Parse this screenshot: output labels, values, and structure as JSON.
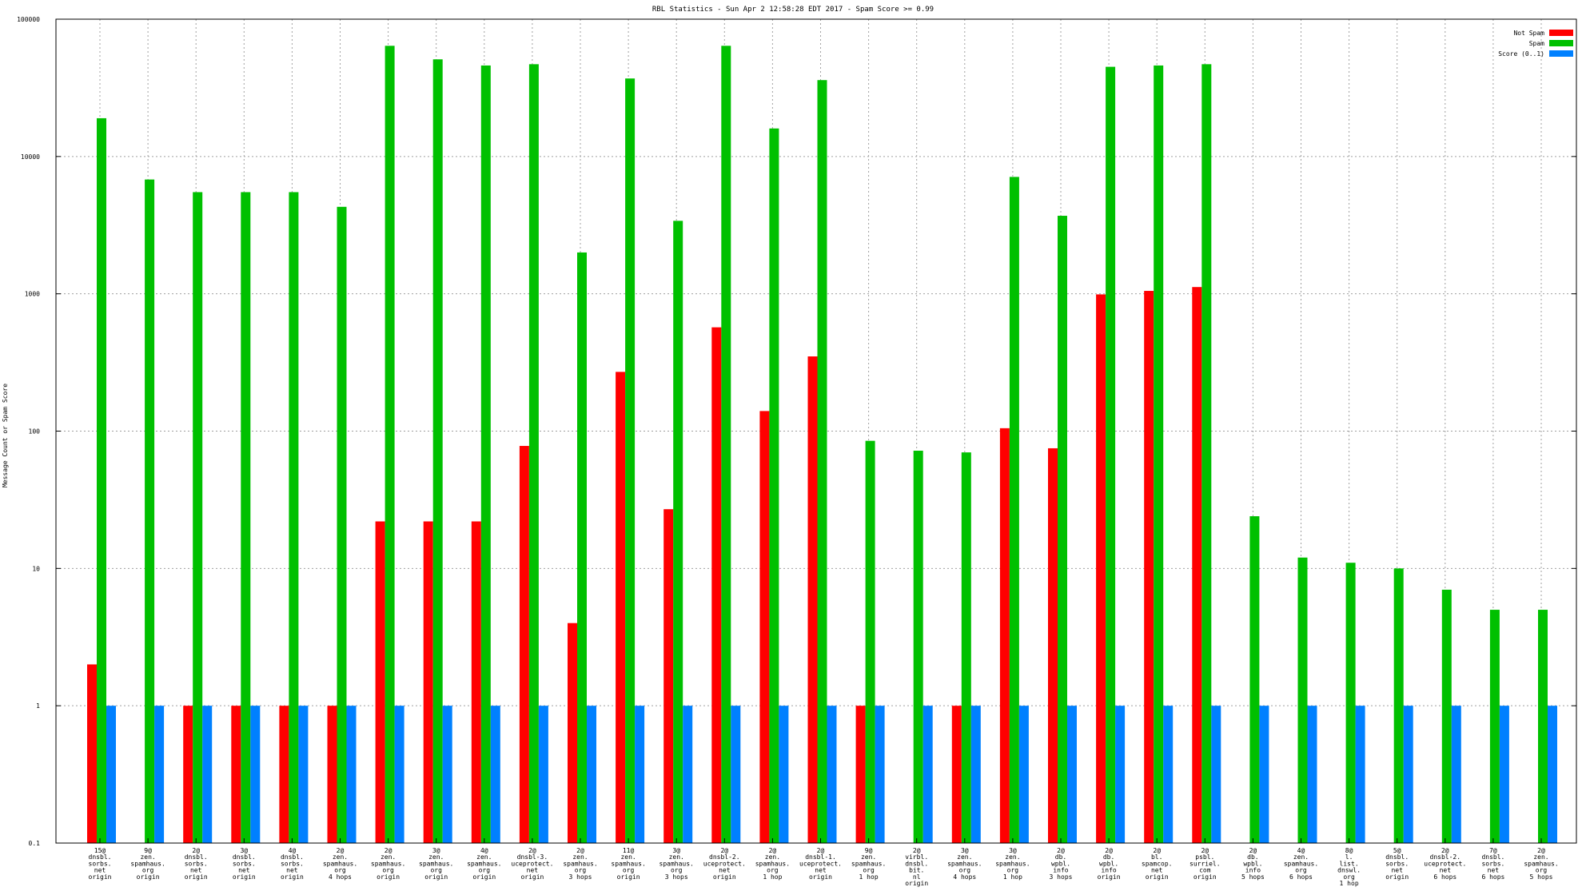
{
  "chart_data": {
    "type": "bar",
    "title": "RBL Statistics - Sun Apr  2 12:58:28 EDT 2017 - Spam Score >= 0.99",
    "ylabel": "Message Count or Spam Score",
    "xlabel": "",
    "yscale": "log",
    "ylim": [
      0.1,
      100000
    ],
    "yticks": [
      {
        "value": 0.1,
        "label": "0.1"
      },
      {
        "value": 1,
        "label": "1"
      },
      {
        "value": 10,
        "label": "10"
      },
      {
        "value": 100,
        "label": "100"
      },
      {
        "value": 1000,
        "label": "1000"
      },
      {
        "value": 10000,
        "label": "10000"
      },
      {
        "value": 100000,
        "label": "100000"
      }
    ],
    "grid": true,
    "legend_position": "top-right",
    "categories": [
      [
        "15@",
        "dnsbl.",
        "sorbs.",
        "net",
        "origin"
      ],
      [
        "9@",
        "zen.",
        "spamhaus.",
        "org",
        "origin"
      ],
      [
        "2@",
        "dnsbl.",
        "sorbs.",
        "net",
        "origin"
      ],
      [
        "3@",
        "dnsbl.",
        "sorbs.",
        "net",
        "origin"
      ],
      [
        "4@",
        "dnsbl.",
        "sorbs.",
        "net",
        "origin"
      ],
      [
        "2@",
        "zen.",
        "spamhaus.",
        "org",
        "4 hops"
      ],
      [
        "2@",
        "zen.",
        "spamhaus.",
        "org",
        "origin"
      ],
      [
        "3@",
        "zen.",
        "spamhaus.",
        "org",
        "origin"
      ],
      [
        "4@",
        "zen.",
        "spamhaus.",
        "org",
        "origin"
      ],
      [
        "2@",
        "dnsbl-3.",
        "uceprotect.",
        "net",
        "origin"
      ],
      [
        "2@",
        "zen.",
        "spamhaus.",
        "org",
        "3 hops"
      ],
      [
        "11@",
        "zen.",
        "spamhaus.",
        "org",
        "origin"
      ],
      [
        "3@",
        "zen.",
        "spamhaus.",
        "org",
        "3 hops"
      ],
      [
        "2@",
        "dnsbl-2.",
        "uceprotect.",
        "net",
        "origin"
      ],
      [
        "2@",
        "zen.",
        "spamhaus.",
        "org",
        "1 hop"
      ],
      [
        "2@",
        "dnsbl-1.",
        "uceprotect.",
        "net",
        "origin"
      ],
      [
        "9@",
        "zen.",
        "spamhaus.",
        "org",
        "1 hop"
      ],
      [
        "2@",
        "virbl.",
        "dnsbl.",
        "bit.",
        "nl",
        "origin"
      ],
      [
        "3@",
        "zen.",
        "spamhaus.",
        "org",
        "4 hops"
      ],
      [
        "3@",
        "zen.",
        "spamhaus.",
        "org",
        "1 hop"
      ],
      [
        "2@",
        "db.",
        "wpbl.",
        "info",
        "3 hops"
      ],
      [
        "2@",
        "db.",
        "wpbl.",
        "info",
        "origin"
      ],
      [
        "2@",
        "bl.",
        "spamcop.",
        "net",
        "origin"
      ],
      [
        "2@",
        "psbl.",
        "surriel.",
        "com",
        "origin"
      ],
      [
        "2@",
        "db.",
        "wpbl.",
        "info",
        "5 hops"
      ],
      [
        "4@",
        "zen.",
        "spamhaus.",
        "org",
        "6 hops"
      ],
      [
        "8@",
        "l.",
        "list.",
        "dnswl.",
        "org",
        "1 hop"
      ],
      [
        "5@",
        "dnsbl.",
        "sorbs.",
        "net",
        "origin"
      ],
      [
        "2@",
        "dnsbl-2.",
        "uceprotect.",
        "net",
        "6 hops"
      ],
      [
        "7@",
        "dnsbl.",
        "sorbs.",
        "net",
        "6 hops"
      ],
      [
        "2@",
        "zen.",
        "spamhaus.",
        "org",
        "5 hops"
      ]
    ],
    "series": [
      {
        "name": "Not Spam",
        "color": "#ff0000",
        "values": [
          2,
          null,
          1,
          1,
          1,
          1,
          22,
          22,
          22,
          78,
          4,
          270,
          27,
          570,
          140,
          350,
          1,
          null,
          1,
          105,
          75,
          990,
          1050,
          1120,
          null,
          null,
          null,
          null,
          null,
          null,
          null
        ]
      },
      {
        "name": "Spam",
        "color": "#00c000",
        "values": [
          19000,
          6800,
          5500,
          5500,
          5500,
          4300,
          64000,
          51000,
          46000,
          47000,
          2000,
          37000,
          3400,
          64000,
          16000,
          36000,
          85,
          72,
          70,
          7100,
          3700,
          45000,
          46000,
          47000,
          24,
          12,
          11,
          10,
          7,
          5,
          5
        ]
      },
      {
        "name": "Score (0..1)",
        "color": "#0080ff",
        "values": [
          1,
          1,
          1,
          1,
          1,
          1,
          1,
          1,
          1,
          1,
          1,
          1,
          1,
          1,
          1,
          1,
          1,
          1,
          1,
          1,
          1,
          1,
          1,
          1,
          1,
          1,
          1,
          1,
          1,
          1,
          1
        ]
      }
    ]
  }
}
